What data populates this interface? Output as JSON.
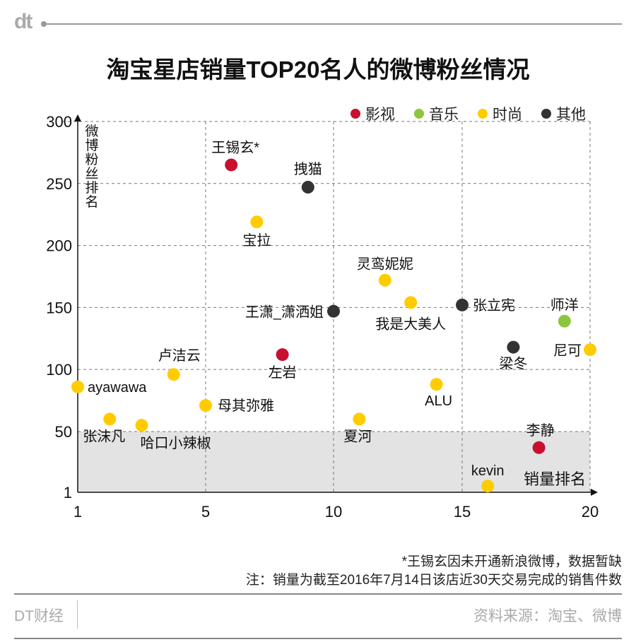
{
  "logo": "dt",
  "title": "淘宝星店销量TOP20名人的微博粉丝情况",
  "chart_data": {
    "type": "scatter",
    "title": "淘宝星店销量TOP20名人的微博粉丝情况",
    "xlabel": "销量排名",
    "ylabel": "微博粉丝排名",
    "xticks": [
      1,
      5,
      10,
      15,
      20
    ],
    "yticks": [
      1,
      50,
      100,
      150,
      200,
      250,
      300
    ],
    "xlim": [
      1,
      20
    ],
    "ylim": [
      1,
      300
    ],
    "grid": true,
    "legend_position": "top-right",
    "shaded_band": {
      "y_from": 1,
      "y_to": 50,
      "color": "#e3e3e3"
    },
    "categories": [
      {
        "name": "影视",
        "color": "#c8102e"
      },
      {
        "name": "音乐",
        "color": "#8cc63f"
      },
      {
        "name": "时尚",
        "color": "#ffcc00"
      },
      {
        "name": "其他",
        "color": "#333333"
      }
    ],
    "points": [
      {
        "label": "ayawawa",
        "x": 1,
        "y": 86,
        "category": "时尚"
      },
      {
        "label": "张沫凡",
        "x": 2,
        "y": 60,
        "category": "时尚"
      },
      {
        "label": "哈口小辣椒",
        "x": 3,
        "y": 55,
        "category": "时尚"
      },
      {
        "label": "卢洁云",
        "x": 4,
        "y": 96,
        "category": "时尚"
      },
      {
        "label": "母其弥雅",
        "x": 5,
        "y": 71,
        "category": "时尚"
      },
      {
        "label": "王锡玄*",
        "x": 6,
        "y": 265,
        "category": "影视"
      },
      {
        "label": "宝拉",
        "x": 7,
        "y": 219,
        "category": "时尚"
      },
      {
        "label": "左岩",
        "x": 8,
        "y": 112,
        "category": "影视"
      },
      {
        "label": "拽猫",
        "x": 9,
        "y": 247,
        "category": "其他"
      },
      {
        "label": "王潇_潇洒姐",
        "x": 10,
        "y": 147,
        "category": "其他"
      },
      {
        "label": "夏河",
        "x": 11,
        "y": 60,
        "category": "时尚"
      },
      {
        "label": "灵鸾妮妮",
        "x": 12,
        "y": 172,
        "category": "时尚"
      },
      {
        "label": "我是大美人",
        "x": 13,
        "y": 154,
        "category": "时尚"
      },
      {
        "label": "ALU",
        "x": 14,
        "y": 88,
        "category": "时尚"
      },
      {
        "label": "张立宪",
        "x": 15,
        "y": 152,
        "category": "其他"
      },
      {
        "label": "kevin",
        "x": 16,
        "y": 6,
        "category": "时尚"
      },
      {
        "label": "梁冬",
        "x": 17,
        "y": 118,
        "category": "其他"
      },
      {
        "label": "李静",
        "x": 18,
        "y": 37,
        "category": "影视"
      },
      {
        "label": "师洋",
        "x": 19,
        "y": 139,
        "category": "音乐"
      },
      {
        "label": "尼可",
        "x": 20,
        "y": 116,
        "category": "时尚"
      }
    ]
  },
  "notes": {
    "footnote": "*王锡玄因未开通新浪微博，数据暂缺",
    "note": "注：销量为截至2016年7月14日该店近30天交易完成的销售件数"
  },
  "footer": {
    "brand": "DT财经",
    "source": "资料来源：淘宝、微博"
  }
}
